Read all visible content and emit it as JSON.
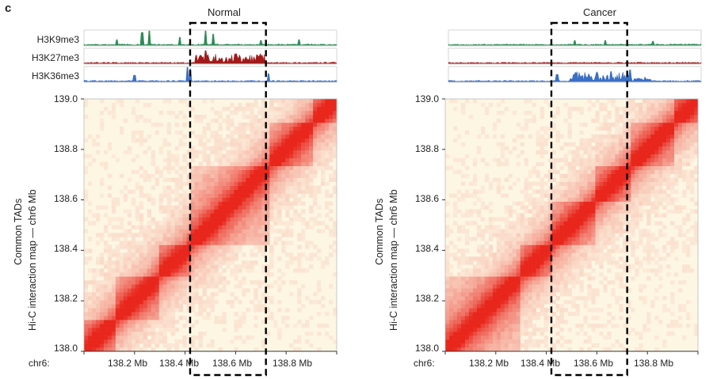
{
  "figure": {
    "panel_letter": "c",
    "y_axis_title_line1": "Common TADs",
    "y_axis_title_line2": "Hi-C interaction map — chr6 Mb",
    "x_axis_prefix": "chr6:"
  },
  "panels": [
    {
      "title": "Normal",
      "tracks": [
        {
          "label": "H3K9me3",
          "color": "#2e8b57"
        },
        {
          "label": "H3K27me3",
          "color": "#a11a1a"
        },
        {
          "label": "H3K36me3",
          "color": "#3a6fc4"
        }
      ]
    },
    {
      "title": "Cancer",
      "tracks": [
        {
          "label": "",
          "color": "#2e8b57"
        },
        {
          "label": "",
          "color": "#a11a1a"
        },
        {
          "label": "",
          "color": "#3a6fc4"
        }
      ]
    }
  ],
  "chart_data": {
    "type": "heatmap",
    "x_ticks": [
      "138.2 Mb",
      "138.4 Mb",
      "138.6 Mb",
      "138.8 Mb"
    ],
    "y_ticks": [
      "139.0",
      "138.8",
      "138.6",
      "138.4",
      "138.2",
      "138.0"
    ],
    "xlim": [
      138.0,
      139.0
    ],
    "ylim": [
      138.0,
      139.0
    ],
    "highlight_region_normal_mb": [
      138.42,
      138.72
    ],
    "highlight_region_cancer_mb": [
      138.42,
      138.72
    ],
    "tad_boundaries_normal_mb": [
      138.0,
      138.13,
      138.3,
      138.42,
      138.73,
      138.9,
      139.0
    ],
    "tad_boundaries_cancer_mb": [
      138.0,
      138.3,
      138.42,
      138.6,
      138.73,
      138.9,
      139.0
    ],
    "colors": {
      "low": "#fdf6e3",
      "high": "#e8261c"
    }
  }
}
